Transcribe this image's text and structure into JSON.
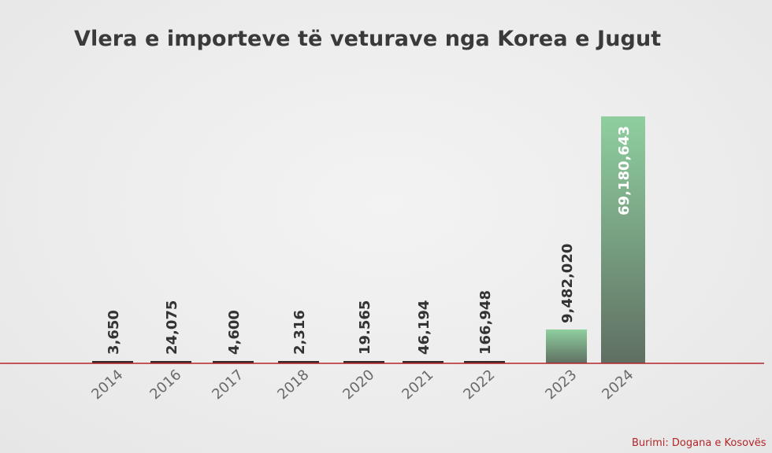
{
  "title": "Vlera e importeve të veturave nga Korea e Jugut",
  "source": "Burimi: Dogana e Kosovës",
  "colors": {
    "baseline": "#b3262a",
    "small_bar": "#3a2a2a",
    "big_bar_top": "#8fcf9f",
    "big_bar_bottom": "#5f6f62",
    "label_dark": "#333333",
    "label_light": "#ffffff"
  },
  "chart_data": {
    "type": "bar",
    "title": "Vlera e importeve të veturave nga Korea e Jugut",
    "xlabel": "",
    "ylabel": "",
    "categories": [
      "2014",
      "2016",
      "2017",
      "2018",
      "2020",
      "2021",
      "2022",
      "2023",
      "2024"
    ],
    "values": [
      3650,
      24075,
      4600,
      2316,
      19565,
      46194,
      166948,
      9482020,
      69180643
    ],
    "value_labels": [
      "3,650",
      "24,075",
      "4,600",
      "2,316",
      "19.565",
      "46,194",
      "166,948",
      "9,482,020",
      "69,180,643"
    ],
    "ylim": [
      0,
      69180643
    ],
    "grid": false,
    "legend": "none"
  }
}
